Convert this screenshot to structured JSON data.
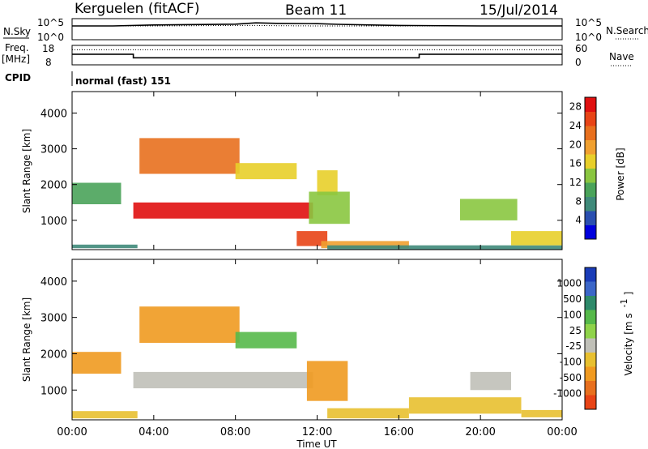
{
  "header": {
    "station": "Kerguelen (fitACF)",
    "beam": "Beam 11",
    "date": "15/Jul/2014"
  },
  "strip": {
    "nsky_label": "N.Sky",
    "nsky_ticks": [
      "10^5",
      "10^0"
    ],
    "nsearch_label": "N.Search",
    "freq_label_1": "Freq.",
    "freq_label_2": "[MHz]",
    "freq_ticks": [
      "18",
      "8"
    ],
    "nave_label": "Nave",
    "nave_ticks": [
      "60",
      "0"
    ],
    "cpid_label": "CPID",
    "cpid_value": "normal (fast) 151"
  },
  "colors": {
    "power_scale": [
      "#0000dd",
      "#2a4fb0",
      "#3f8a7a",
      "#4aa35a",
      "#8ac640",
      "#e8cf2a",
      "#f0a030",
      "#e8701e",
      "#e84416",
      "#e01010"
    ],
    "velocity_scale": [
      "#1a3cb8",
      "#3b66c8",
      "#2e8a6a",
      "#56b94a",
      "#8fd34a",
      "#c8c8c0",
      "#e8c030",
      "#f09a20",
      "#e8701e",
      "#e84416",
      "#e01010"
    ],
    "ground_scatter": "#c0c0b8"
  },
  "chart_data": [
    {
      "type": "line",
      "title": "N.Sky / N.Search",
      "x": [
        "00:00",
        "02:00",
        "04:00",
        "06:00",
        "08:00",
        "09:00",
        "10:00",
        "12:00",
        "13:00",
        "16:00",
        "20:00",
        "24:00"
      ],
      "series": [
        {
          "name": "N.Sky",
          "values": [
            3000,
            3000,
            5500,
            7000,
            9000,
            20000,
            15000,
            12000,
            8000,
            4000,
            3000,
            3000
          ]
        },
        {
          "name": "N.Search",
          "values": [
            3000,
            3000,
            3000,
            3500,
            4000,
            4000,
            3500,
            3000,
            3000,
            3000,
            3000,
            3000
          ]
        }
      ],
      "ylabel": "N.Sky",
      "y2label": "N.Search",
      "scale": "log",
      "ylim": [
        1,
        100000
      ]
    },
    {
      "type": "line",
      "title": "Freq. / Nave",
      "x": [
        "00:00",
        "03:00",
        "03:00",
        "17:00",
        "17:00",
        "24:00"
      ],
      "series": [
        {
          "name": "Freq.",
          "values": [
            13.5,
            13.5,
            11.5,
            11.5,
            13.5,
            13.5
          ]
        },
        {
          "name": "Nave",
          "values": [
            48,
            48,
            48,
            48,
            48,
            48
          ]
        }
      ],
      "ylabel": "Freq. [MHz]",
      "ylim": [
        8,
        18
      ],
      "y2label": "Nave",
      "y2lim": [
        0,
        60
      ]
    },
    {
      "type": "heatmap",
      "title": "Power",
      "xlabel": "Time UT",
      "ylabel": "Slant Range [km]",
      "x_ticks": [
        "00:00",
        "04:00",
        "08:00",
        "12:00",
        "16:00",
        "20:00",
        "00:00"
      ],
      "xlim": [
        0,
        24
      ],
      "y_ticks": [
        "1000",
        "2000",
        "3000",
        "4000"
      ],
      "ylim": [
        180,
        4600
      ],
      "colorbar_label": "Power [dB]",
      "colorbar_ticks": [
        "4",
        "8",
        "12",
        "16",
        "20",
        "24",
        "28"
      ],
      "colorbar_range": [
        0,
        30
      ],
      "regions": [
        {
          "t": [
            0.0,
            2.4
          ],
          "r": [
            1450,
            2050
          ],
          "v": 10
        },
        {
          "t": [
            0.0,
            3.2
          ],
          "r": [
            220,
            320
          ],
          "v": 6
        },
        {
          "t": [
            3.0,
            11.8
          ],
          "r": [
            1050,
            1500
          ],
          "v": 27
        },
        {
          "t": [
            3.3,
            8.2
          ],
          "r": [
            2300,
            3300
          ],
          "v": 21
        },
        {
          "t": [
            8.0,
            11.0
          ],
          "r": [
            2150,
            2600
          ],
          "v": 17
        },
        {
          "t": [
            12.0,
            13.0
          ],
          "r": [
            1700,
            2400
          ],
          "v": 15
        },
        {
          "t": [
            11.6,
            13.6
          ],
          "r": [
            900,
            1800
          ],
          "v": 14
        },
        {
          "t": [
            11.0,
            12.5
          ],
          "r": [
            280,
            700
          ],
          "v": 25
        },
        {
          "t": [
            12.2,
            16.5
          ],
          "r": [
            220,
            420
          ],
          "v": 20
        },
        {
          "t": [
            12.5,
            24.0
          ],
          "r": [
            180,
            300
          ],
          "v": 6
        },
        {
          "t": [
            19.0,
            21.8
          ],
          "r": [
            1000,
            1600
          ],
          "v": 12
        },
        {
          "t": [
            21.5,
            24.0
          ],
          "r": [
            300,
            700
          ],
          "v": 15
        }
      ]
    },
    {
      "type": "heatmap",
      "title": "Velocity",
      "xlabel": "Time UT",
      "ylabel": "Slant Range [km]",
      "x_ticks": [
        "00:00",
        "04:00",
        "08:00",
        "12:00",
        "16:00",
        "20:00",
        "00:00"
      ],
      "xlim": [
        0,
        24
      ],
      "y_ticks": [
        "1000",
        "2000",
        "3000",
        "4000"
      ],
      "ylim": [
        180,
        4600
      ],
      "colorbar_label": "Velocity [m s-1]",
      "colorbar_ticks": [
        "1000",
        "500",
        "100",
        "25",
        "-25",
        "-100",
        "-500",
        "-1000"
      ],
      "regions": [
        {
          "t": [
            0.0,
            2.4
          ],
          "r": [
            1450,
            2050
          ],
          "v": -200
        },
        {
          "t": [
            0.0,
            3.2
          ],
          "r": [
            220,
            420
          ],
          "v": -80
        },
        {
          "t": [
            3.0,
            11.8
          ],
          "r": [
            1050,
            1500
          ],
          "v": 0
        },
        {
          "t": [
            3.3,
            8.2
          ],
          "r": [
            2300,
            3300
          ],
          "v": -150
        },
        {
          "t": [
            8.0,
            11.0
          ],
          "r": [
            2150,
            2600
          ],
          "v": 60
        },
        {
          "t": [
            11.5,
            13.5
          ],
          "r": [
            700,
            1800
          ],
          "v": -120
        },
        {
          "t": [
            12.5,
            16.5
          ],
          "r": [
            220,
            500
          ],
          "v": -60
        },
        {
          "t": [
            16.5,
            22.0
          ],
          "r": [
            350,
            800
          ],
          "v": -60
        },
        {
          "t": [
            19.5,
            21.5
          ],
          "r": [
            1000,
            1500
          ],
          "v": 0
        },
        {
          "t": [
            22.0,
            24.0
          ],
          "r": [
            250,
            450
          ],
          "v": -80
        }
      ]
    }
  ]
}
